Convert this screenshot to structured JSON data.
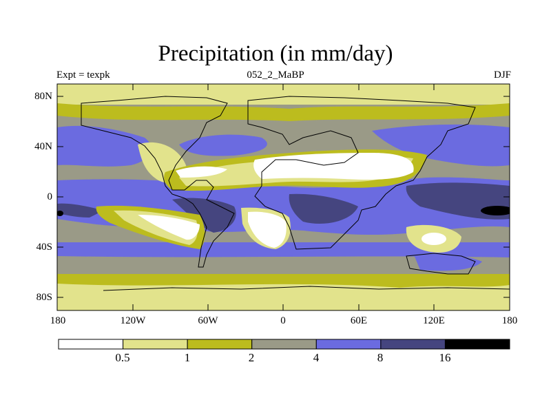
{
  "title": "Precipitation (in mm/day)",
  "subtitle_left": "Expt = texpk",
  "subtitle_center": "052_2_MaBP",
  "subtitle_right": "DJF",
  "lat_labels": [
    "80N",
    "40N",
    "0",
    "40S",
    "80S"
  ],
  "lon_labels": [
    "180",
    "120W",
    "60W",
    "0",
    "60E",
    "120E",
    "180"
  ],
  "colorbar": {
    "labels": [
      "0.5",
      "1",
      "2",
      "4",
      "8",
      "16"
    ],
    "colors": [
      "#ffffff",
      "#e2e38c",
      "#bcbc1e",
      "#9a9a87",
      "#6b6be0",
      "#45457f",
      "#000000"
    ]
  }
}
